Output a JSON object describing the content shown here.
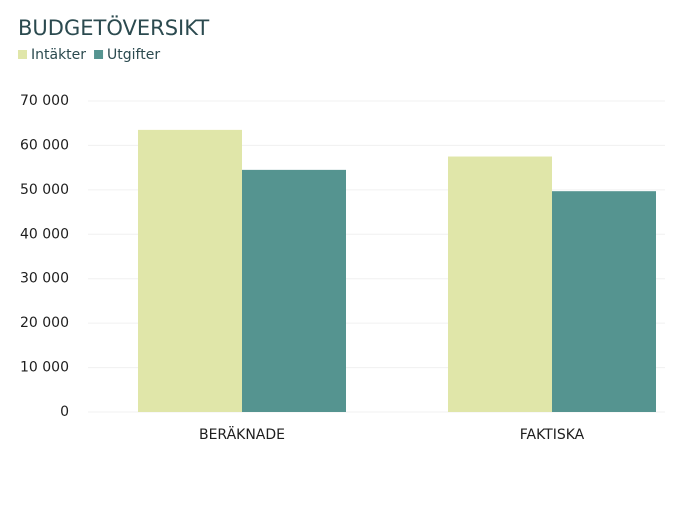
{
  "chart_data": {
    "type": "bar",
    "title": "BUDGETÖVERSIKT",
    "categories": [
      "BERÄKNADE",
      "FAKTISKA"
    ],
    "series": [
      {
        "name": "Intäkter",
        "color": "#e0e6a9",
        "values": [
          63500,
          57500
        ]
      },
      {
        "name": "Utgifter",
        "color": "#559490",
        "values": [
          54500,
          49700
        ]
      }
    ],
    "ylim": [
      0,
      70000
    ],
    "yticks": [
      0,
      {
        "value": 10000,
        "label": "10 000"
      },
      {
        "value": 20000,
        "label": "20 000"
      },
      {
        "value": 30000,
        "label": "30 000"
      },
      {
        "value": 40000,
        "label": "40 000"
      },
      {
        "value": 50000,
        "label": "50 000"
      },
      {
        "value": 60000,
        "label": "60 000"
      },
      {
        "value": 70000,
        "label": "70 000"
      }
    ],
    "grid": true
  }
}
